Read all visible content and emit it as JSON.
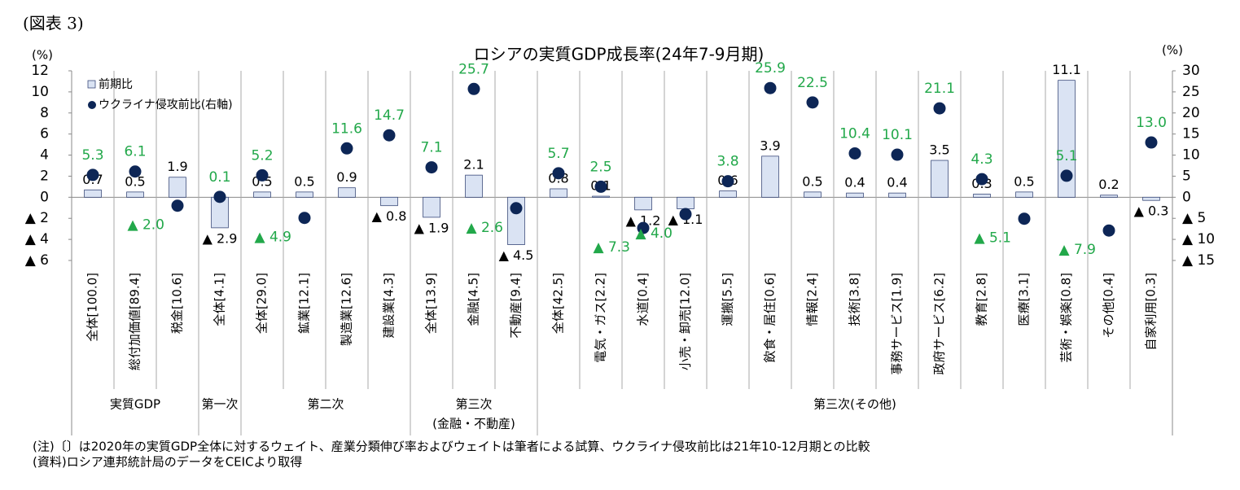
{
  "figure_label": "(図表 3)",
  "chart_data": {
    "type": "bar",
    "title": "ロシアの実質GDP成長率(24年7-9月期)",
    "y_unit": "(%)",
    "y2_unit": "(%)",
    "categories": [
      "全体[100.0]",
      "総付加価値[89.4]",
      "税金[10.6]",
      "全体[4.1]",
      "全体[29.0]",
      "鉱業[12.1]",
      "製造業[12.6]",
      "建設業[4.3]",
      "全体[13.9]",
      "金融[4.5]",
      "不動産[9.4]",
      "全体[42.5]",
      "電気・ガス[2.2]",
      "水道[0.4]",
      "小売・卸売[12.0]",
      "運搬[5.5]",
      "飲食・居住[0.6]",
      "情報[2.4]",
      "技術[3.8]",
      "事務サービス[1.9]",
      "政府サービス[6.2]",
      "教育[2.8]",
      "医療[3.1]",
      "芸術・娯楽[0.8]",
      "その他[0.4]",
      "自家利用[0.3]"
    ],
    "groups": [
      {
        "label": "実質GDP",
        "span": 3
      },
      {
        "label": "第一次",
        "span": 1
      },
      {
        "label": "第二次",
        "span": 4
      },
      {
        "label": "第三次",
        "sublabel": "(金融・不動産)",
        "span": 3
      },
      {
        "label": "第三次(その他)",
        "span": 15
      }
    ],
    "series": [
      {
        "name": "前期比",
        "color": "#dae3f3",
        "stroke": "#3a4a7a",
        "values": [
          0.7,
          0.5,
          1.9,
          -2.9,
          0.5,
          0.5,
          0.9,
          -0.8,
          -1.9,
          2.1,
          -4.5,
          0.8,
          0.1,
          -1.2,
          -1.1,
          0.6,
          3.9,
          0.5,
          0.4,
          0.4,
          3.5,
          0.3,
          0.5,
          11.1,
          0.2,
          -0.3
        ],
        "value_labels": [
          "0.7",
          "0.5",
          "1.9",
          "▲ 2.9",
          "0.5",
          "0.5",
          "0.9",
          "▲ 0.8",
          "▲ 1.9",
          "2.1",
          "▲ 4.5",
          "0.8",
          "0.1",
          "▲ 1.2",
          "▲ 1.1",
          "0.6",
          "3.9",
          "0.5",
          "0.4",
          "0.4",
          "3.5",
          "0.3",
          "0.5",
          "11.1",
          "0.2",
          "▲ 0.3"
        ],
        "label_color": "#000000"
      },
      {
        "name": "ウクライナ侵攻前比(右軸)",
        "color": "#0d2656",
        "axis": "y2",
        "values": [
          5.3,
          6.1,
          -2.0,
          0.1,
          5.2,
          -4.9,
          11.6,
          14.7,
          7.1,
          25.7,
          -2.6,
          5.7,
          2.5,
          -7.3,
          -4.0,
          3.8,
          25.9,
          22.5,
          10.4,
          10.1,
          21.1,
          4.3,
          -5.1,
          5.1,
          -7.9,
          13.0
        ],
        "value_labels": [
          "5.3",
          "6.1",
          "▲ 2.0",
          "0.1",
          "5.2",
          "▲ 4.9",
          "11.6",
          "14.7",
          "7.1",
          "25.7",
          "▲ 2.6",
          "5.7",
          "2.5",
          "▲ 7.3",
          "▲ 4.0",
          "3.8",
          "25.9",
          "22.5",
          "10.4",
          "10.1",
          "21.1",
          "4.3",
          "▲ 5.1",
          "5.1",
          "▲ 7.9",
          "13.0"
        ],
        "label_color": "#22a84a"
      }
    ],
    "ylim": [
      -6,
      12
    ],
    "yticks": [
      12,
      10,
      8,
      6,
      4,
      2,
      0,
      {
        "value": -2,
        "label": "▲ 2"
      },
      {
        "value": -4,
        "label": "▲ 4"
      },
      {
        "value": -6,
        "label": "▲ 6"
      }
    ],
    "y2lim": [
      -15,
      30
    ],
    "y2ticks": [
      30,
      25,
      20,
      15,
      10,
      5,
      0,
      {
        "value": -5,
        "label": "▲ 5"
      },
      {
        "value": -10,
        "label": "▲ 10"
      },
      {
        "value": -15,
        "label": "▲ 15"
      }
    ],
    "legend": "top-left"
  },
  "notes": [
    "(注)〔〕は2020年の実質GDP全体に対するウェイト、産業分類伸び率およびウェイトは筆者による試算、ウクライナ侵攻前比は21年10-12月期との比較",
    "(資料)ロシア連邦統計局のデータをCEICより取得"
  ]
}
